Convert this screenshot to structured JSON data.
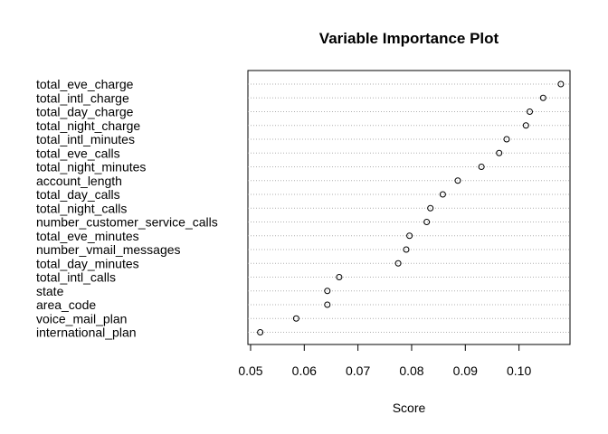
{
  "chart_data": {
    "type": "scatter",
    "title": "Variable Importance Plot",
    "xlabel": "Score",
    "ylabel": "",
    "xlim": [
      0.0495,
      0.1095
    ],
    "xticks": [
      "0.05",
      "0.06",
      "0.07",
      "0.08",
      "0.09",
      "0.10"
    ],
    "tick_values": [
      0.05,
      0.06,
      0.07,
      0.08,
      0.09,
      0.1
    ],
    "grid": "horizontal dotted",
    "categories": [
      "total_eve_charge",
      "total_intl_charge",
      "total_day_charge",
      "total_night_charge",
      "total_intl_minutes",
      "total_eve_calls",
      "total_night_minutes",
      "account_length",
      "total_day_calls",
      "total_night_calls",
      "number_customer_service_calls",
      "total_eve_minutes",
      "number_vmail_messages",
      "total_day_minutes",
      "total_intl_calls",
      "state",
      "area_code",
      "voice_mail_plan",
      "international_plan"
    ],
    "values": [
      0.1078,
      0.1045,
      0.102,
      0.1013,
      0.0977,
      0.0963,
      0.093,
      0.0886,
      0.0858,
      0.0835,
      0.0828,
      0.0796,
      0.079,
      0.0775,
      0.0665,
      0.0643,
      0.0643,
      0.0585,
      0.0518
    ]
  }
}
